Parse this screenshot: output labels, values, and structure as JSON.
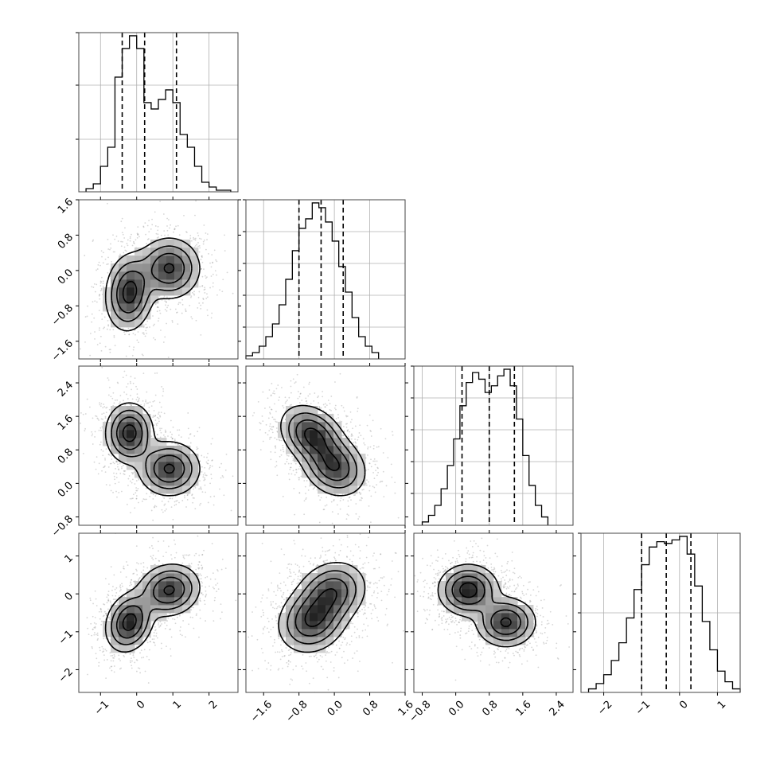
{
  "chart_data": {
    "type": "corner",
    "title": "",
    "n_params": 4,
    "layout": "lower-triangle",
    "grid": true,
    "colors": {
      "line": "#000000",
      "scatter": "#8a8a8a",
      "density": "#303030",
      "grid": "#b0b0b0"
    },
    "params": [
      {
        "index": 0,
        "range": [
          -1.6,
          2.8
        ],
        "ticks": [
          -1,
          0,
          1,
          2
        ],
        "tick_labels": [
          "−1",
          "0",
          "1",
          "2"
        ],
        "quantiles": [
          -0.4,
          0.22,
          1.1
        ],
        "hist_bins": [
          -1.4,
          -1.2,
          -1.0,
          -0.8,
          -0.6,
          -0.4,
          -0.2,
          0.0,
          0.2,
          0.4,
          0.6,
          0.8,
          1.0,
          1.2,
          1.4,
          1.6,
          1.8,
          2.0,
          2.2,
          2.4,
          2.6
        ],
        "hist_counts": [
          2,
          5,
          16,
          28,
          72,
          90,
          98,
          90,
          56,
          52,
          58,
          64,
          56,
          36,
          28,
          16,
          6,
          3,
          1,
          1
        ],
        "hist_yticks": [
          0.33,
          0.67,
          1.0
        ]
      },
      {
        "index": 1,
        "range": [
          -2.0,
          1.6
        ],
        "ticks": [
          -1.6,
          -0.8,
          0.0,
          0.8,
          1.6
        ],
        "tick_labels": [
          "−1.6",
          "−0.8",
          "0.0",
          "0.8",
          "1.6"
        ],
        "quantiles": [
          -0.8,
          -0.3,
          0.2
        ],
        "hist_bins": [
          -2.0,
          -1.85,
          -1.7,
          -1.55,
          -1.4,
          -1.25,
          -1.1,
          -0.95,
          -0.8,
          -0.65,
          -0.5,
          -0.35,
          -0.2,
          -0.05,
          0.1,
          0.25,
          0.4,
          0.55,
          0.7,
          0.85,
          1.0
        ],
        "hist_counts": [
          2,
          4,
          8,
          14,
          22,
          34,
          50,
          68,
          82,
          88,
          98,
          95,
          86,
          74,
          58,
          42,
          26,
          14,
          8,
          4
        ],
        "hist_yticks": [
          0.2,
          0.4,
          0.6,
          0.8,
          1.0
        ]
      },
      {
        "index": 2,
        "range": [
          -1.0,
          2.8
        ],
        "ticks": [
          -0.8,
          0.0,
          0.8,
          1.6,
          2.4
        ],
        "tick_labels": [
          "−0.8",
          "0.0",
          "0.8",
          "1.6",
          "2.4"
        ],
        "quantiles": [
          0.15,
          0.8,
          1.4
        ],
        "hist_bins": [
          -0.8,
          -0.65,
          -0.5,
          -0.35,
          -0.2,
          -0.05,
          0.1,
          0.25,
          0.4,
          0.55,
          0.7,
          0.85,
          1.0,
          1.15,
          1.3,
          1.45,
          1.6,
          1.75,
          1.9,
          2.05,
          2.2
        ],
        "hist_counts": [
          2,
          6,
          12,
          22,
          36,
          52,
          72,
          86,
          92,
          88,
          80,
          84,
          90,
          94,
          84,
          64,
          42,
          24,
          12,
          5
        ],
        "hist_yticks": [
          0.2,
          0.4,
          0.6,
          0.8,
          1.0
        ]
      },
      {
        "index": 3,
        "range": [
          -2.6,
          1.6
        ],
        "ticks": [
          -2,
          -1,
          0,
          1
        ],
        "tick_labels": [
          "−2",
          "−1",
          "0",
          "1"
        ],
        "quantiles": [
          -1.0,
          -0.35,
          0.3
        ],
        "hist_bins": [
          -2.4,
          -2.2,
          -2.0,
          -1.8,
          -1.6,
          -1.4,
          -1.2,
          -1.0,
          -0.8,
          -0.6,
          -0.4,
          -0.2,
          0.0,
          0.2,
          0.4,
          0.6,
          0.8,
          1.0,
          1.2,
          1.4,
          1.6
        ],
        "hist_counts": [
          2,
          5,
          10,
          18,
          28,
          42,
          58,
          72,
          82,
          85,
          84,
          86,
          88,
          78,
          60,
          40,
          24,
          12,
          6,
          2
        ],
        "hist_yticks": [
          0.5,
          1.0
        ]
      }
    ],
    "density_panels": [
      {
        "x": 0,
        "y": 1,
        "modes": [
          {
            "mean": [
              -0.2,
              -0.5
            ],
            "sd": [
              0.32,
              0.42
            ],
            "rho": 0.1,
            "w": 1.0
          },
          {
            "mean": [
              0.9,
              0.05
            ],
            "sd": [
              0.42,
              0.34
            ],
            "rho": 0.0,
            "w": 0.9
          }
        ]
      },
      {
        "x": 0,
        "y": 2,
        "modes": [
          {
            "mean": [
              -0.2,
              1.2
            ],
            "sd": [
              0.32,
              0.35
            ],
            "rho": 0.0,
            "w": 1.0
          },
          {
            "mean": [
              0.9,
              0.35
            ],
            "sd": [
              0.42,
              0.32
            ],
            "rho": 0.0,
            "w": 0.9
          }
        ]
      },
      {
        "x": 1,
        "y": 2,
        "modes": [
          {
            "mean": [
              -0.5,
              1.15
            ],
            "sd": [
              0.35,
              0.35
            ],
            "rho": -0.3,
            "w": 1.0
          },
          {
            "mean": [
              0.0,
              0.4
            ],
            "sd": [
              0.35,
              0.35
            ],
            "rho": -0.2,
            "w": 0.9
          }
        ]
      },
      {
        "x": 0,
        "y": 3,
        "modes": [
          {
            "mean": [
              -0.2,
              -0.75
            ],
            "sd": [
              0.32,
              0.38
            ],
            "rho": 0.2,
            "w": 1.0
          },
          {
            "mean": [
              0.9,
              0.1
            ],
            "sd": [
              0.42,
              0.34
            ],
            "rho": 0.1,
            "w": 0.9
          }
        ]
      },
      {
        "x": 1,
        "y": 3,
        "modes": [
          {
            "mean": [
              -0.5,
              -0.7
            ],
            "sd": [
              0.38,
              0.42
            ],
            "rho": 0.15,
            "w": 1.0
          },
          {
            "mean": [
              -0.05,
              0.05
            ],
            "sd": [
              0.38,
              0.4
            ],
            "rho": 0.15,
            "w": 0.9
          }
        ]
      },
      {
        "x": 2,
        "y": 3,
        "modes": [
          {
            "mean": [
              0.3,
              0.1
            ],
            "sd": [
              0.35,
              0.33
            ],
            "rho": 0.0,
            "w": 1.0
          },
          {
            "mean": [
              1.2,
              -0.75
            ],
            "sd": [
              0.35,
              0.32
            ],
            "rho": 0.0,
            "w": 0.9
          }
        ]
      }
    ],
    "contour_levels": [
      0.12,
      0.3,
      0.55,
      0.85
    ]
  }
}
